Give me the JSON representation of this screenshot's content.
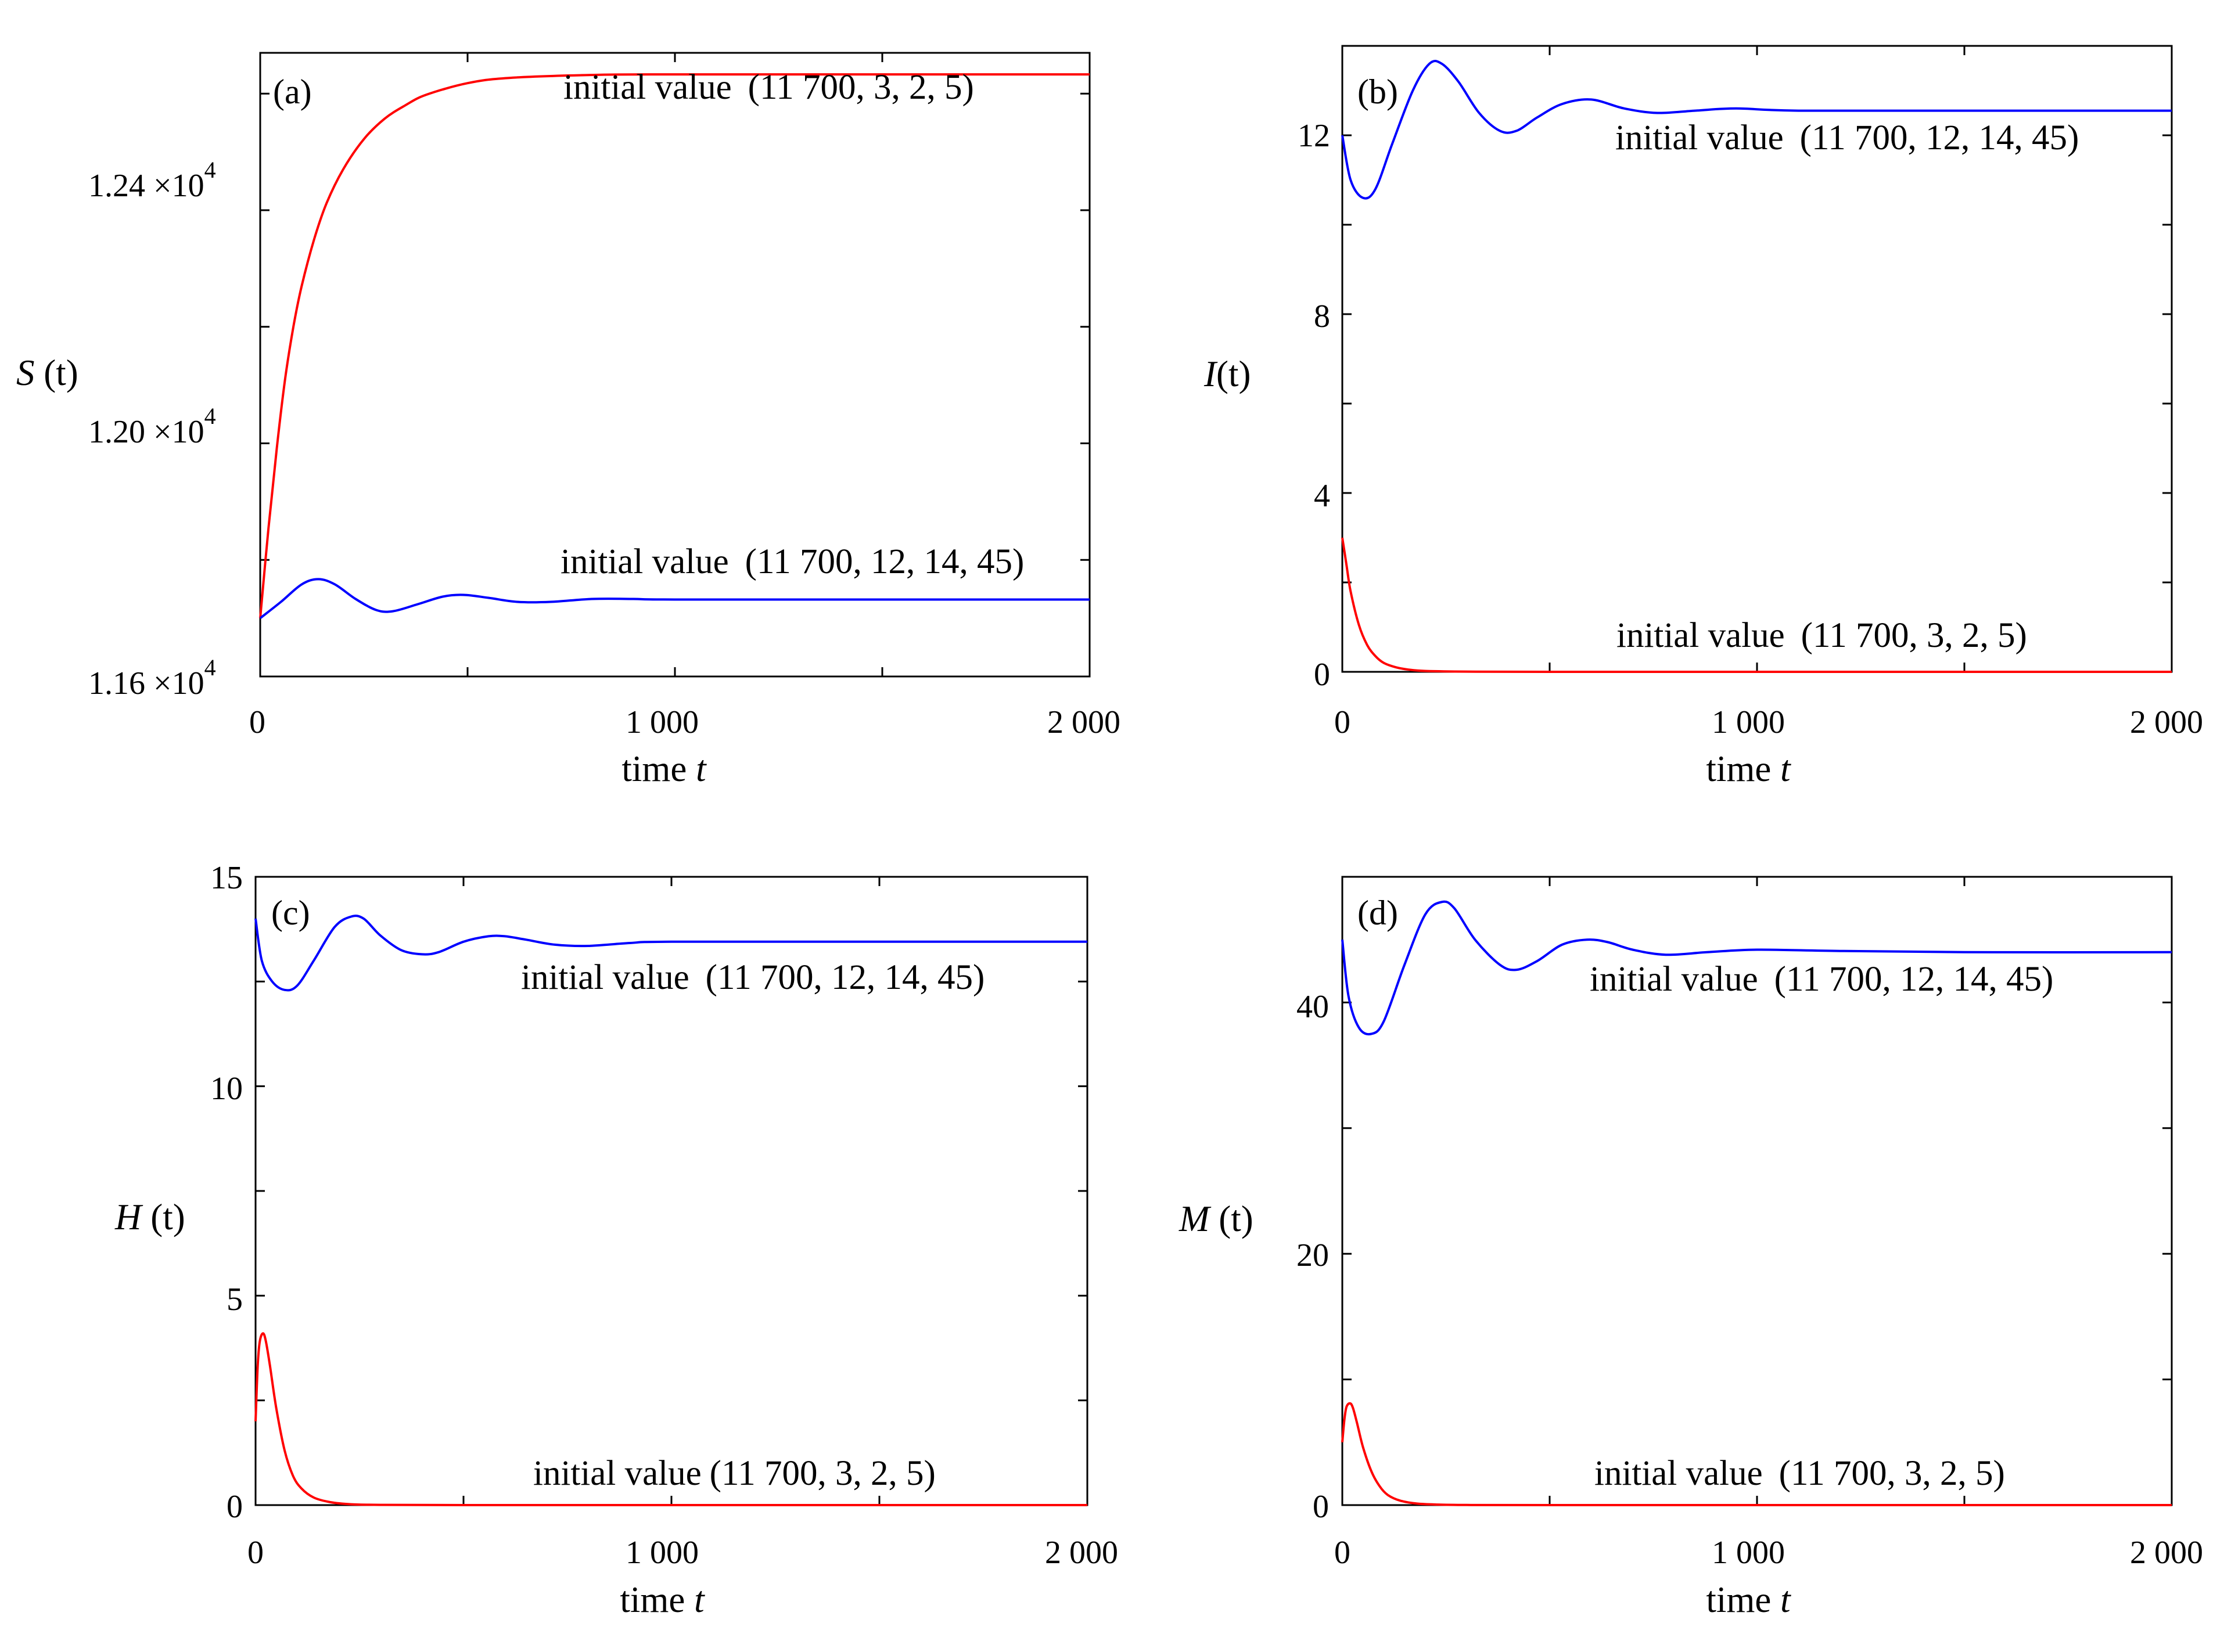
{
  "chart_data": [
    {
      "type": "line",
      "panel_label": "(a)",
      "xlabel": "time t",
      "xlabel_text": "time",
      "xlabel_var": "t",
      "ylabel": "S (t)",
      "ylabel_var": "S",
      "ylabel_arg": "(t)",
      "xlim": [
        0,
        2000
      ],
      "ylim": [
        11600,
        12670
      ],
      "xticks": [
        0,
        1000,
        2000
      ],
      "xtick_labels": [
        "0",
        "1 000",
        "2 000"
      ],
      "yticks": [
        11600,
        12000,
        12400
      ],
      "ytick_labels": [
        {
          "mantissa": "1.16 ×10",
          "exponent": "4"
        },
        {
          "mantissa": "1.20 ×10",
          "exponent": "4"
        },
        {
          "mantissa": "1.24 ×10",
          "exponent": "4"
        }
      ],
      "series": [
        {
          "name": "initial value (11 700, 3, 2, 5)",
          "color": "#ff0000",
          "x": [
            0,
            20,
            40,
            60,
            80,
            100,
            130,
            160,
            200,
            250,
            300,
            350,
            400,
            500,
            600,
            800,
            1000,
            1500,
            2000
          ],
          "values": [
            11700,
            11855,
            11992,
            12110,
            12200,
            12270,
            12350,
            12412,
            12470,
            12522,
            12557,
            12580,
            12598,
            12618,
            12627,
            12632,
            12633,
            12633,
            12633
          ]
        },
        {
          "name": "initial value (11 700, 12, 14, 45)",
          "color": "#0000ff",
          "x": [
            0,
            50,
            100,
            140,
            180,
            230,
            280,
            320,
            380,
            440,
            490,
            550,
            620,
            700,
            800,
            900,
            1000,
            1500,
            2000
          ],
          "values": [
            11700,
            11728,
            11758,
            11767,
            11758,
            11733,
            11714,
            11712,
            11724,
            11737,
            11740,
            11735,
            11728,
            11728,
            11733,
            11733,
            11732,
            11732,
            11732
          ]
        }
      ],
      "annotations": [
        {
          "text": "initial value",
          "values": "(11 700, 3, 2, 5)",
          "series": 0
        },
        {
          "text": "initial value",
          "values": "(11 700, 12, 14, 45)",
          "series": 1
        }
      ]
    },
    {
      "type": "line",
      "panel_label": "(b)",
      "xlabel": "time t",
      "xlabel_text": "time",
      "xlabel_var": "t",
      "ylabel": "I (t)",
      "ylabel_var": "I",
      "ylabel_arg": "(t)",
      "xlim": [
        0,
        2000
      ],
      "ylim": [
        0,
        14
      ],
      "xticks": [
        0,
        1000,
        2000
      ],
      "xtick_labels": [
        "0",
        "1 000",
        "2 000"
      ],
      "yticks": [
        0,
        4,
        8,
        12
      ],
      "ytick_labels": [
        "0",
        "4",
        "8",
        "12"
      ],
      "series": [
        {
          "name": "initial value (11 700, 12, 14, 45)",
          "color": "#0000ff",
          "x": [
            0,
            20,
            50,
            80,
            120,
            170,
            210,
            240,
            280,
            330,
            380,
            420,
            470,
            530,
            600,
            680,
            760,
            850,
            950,
            1100,
            1500,
            2000
          ],
          "values": [
            12,
            11.0,
            10.6,
            10.8,
            11.8,
            13.0,
            13.6,
            13.6,
            13.2,
            12.5,
            12.1,
            12.1,
            12.4,
            12.7,
            12.8,
            12.6,
            12.5,
            12.55,
            12.6,
            12.55,
            12.55,
            12.55
          ]
        },
        {
          "name": "initial value (11 700, 3, 2, 5)",
          "color": "#ff0000",
          "x": [
            0,
            10,
            20,
            40,
            60,
            80,
            100,
            130,
            160,
            200,
            300,
            500,
            1000,
            2000
          ],
          "values": [
            3,
            2.4,
            1.8,
            1.05,
            0.6,
            0.35,
            0.2,
            0.1,
            0.05,
            0.02,
            0.005,
            0,
            0,
            0
          ]
        }
      ],
      "annotations": [
        {
          "text": "initial value",
          "values": "(11 700, 12, 14, 45)",
          "series": 0
        },
        {
          "text": "initial value",
          "values": "(11 700, 3, 2, 5)",
          "series": 1
        }
      ]
    },
    {
      "type": "line",
      "panel_label": "(c)",
      "xlabel": "time t",
      "xlabel_text": "time",
      "xlabel_var": "t",
      "ylabel": "H (t)",
      "ylabel_var": "H",
      "ylabel_arg": "(t)",
      "xlim": [
        0,
        2000
      ],
      "ylim": [
        0,
        15
      ],
      "xticks": [
        0,
        1000,
        2000
      ],
      "xtick_labels": [
        "0",
        "1 000",
        "2 000"
      ],
      "yticks": [
        0,
        5,
        10,
        15
      ],
      "ytick_labels": [
        "0",
        "5",
        "10",
        "15"
      ],
      "series": [
        {
          "name": "initial value (11 700, 12, 14, 45)",
          "color": "#0000ff",
          "x": [
            0,
            15,
            40,
            70,
            100,
            140,
            190,
            230,
            260,
            300,
            350,
            400,
            440,
            500,
            560,
            600,
            650,
            720,
            800,
            900,
            1000,
            1500,
            2000
          ],
          "values": [
            14,
            13.0,
            12.5,
            12.3,
            12.4,
            13.0,
            13.8,
            14.05,
            14.0,
            13.6,
            13.25,
            13.15,
            13.2,
            13.45,
            13.58,
            13.58,
            13.5,
            13.38,
            13.35,
            13.42,
            13.45,
            13.45,
            13.45
          ]
        },
        {
          "name": "initial value (11 700, 3, 2, 5)",
          "color": "#ff0000",
          "x": [
            0,
            5,
            10,
            18,
            25,
            35,
            50,
            70,
            90,
            110,
            140,
            180,
            230,
            300,
            500,
            1000,
            2000
          ],
          "values": [
            2,
            3.3,
            3.9,
            4.1,
            3.9,
            3.3,
            2.3,
            1.3,
            0.7,
            0.4,
            0.18,
            0.07,
            0.02,
            0.005,
            0,
            0,
            0
          ]
        }
      ],
      "annotations": [
        {
          "text": "initial value",
          "values": "(11 700, 12, 14, 45)",
          "series": 0
        },
        {
          "text": "initial value",
          "values": "(11 700, 3, 2, 5)",
          "series": 1
        }
      ]
    },
    {
      "type": "line",
      "panel_label": "(d)",
      "xlabel": "time t",
      "xlabel_text": "time",
      "xlabel_var": "t",
      "ylabel": "M (t)",
      "ylabel_var": "M",
      "ylabel_arg": "(t)",
      "xlim": [
        0,
        2000
      ],
      "ylim": [
        0,
        50
      ],
      "xticks": [
        0,
        1000,
        2000
      ],
      "xtick_labels": [
        "0",
        "1 000",
        "2 000"
      ],
      "yticks": [
        0,
        20,
        40
      ],
      "ytick_labels": [
        "0",
        "20",
        "40"
      ],
      "series": [
        {
          "name": "initial value (11 700, 12, 14, 45)",
          "color": "#0000ff",
          "x": [
            0,
            15,
            40,
            70,
            100,
            150,
            200,
            240,
            270,
            320,
            380,
            420,
            470,
            530,
            590,
            640,
            700,
            780,
            880,
            1000,
            1200,
            1500,
            2000
          ],
          "values": [
            45,
            40.5,
            38.0,
            37.5,
            38.5,
            43.0,
            47.0,
            48.0,
            47.5,
            45.0,
            43.0,
            42.6,
            43.3,
            44.6,
            45.0,
            44.8,
            44.2,
            43.8,
            44.0,
            44.2,
            44.1,
            44.0,
            44.0
          ]
        },
        {
          "name": "initial value (11 700, 3, 2, 5)",
          "color": "#ff0000",
          "x": [
            0,
            5,
            10,
            18,
            25,
            35,
            50,
            70,
            90,
            110,
            140,
            180,
            230,
            300,
            500,
            1000,
            2000
          ],
          "values": [
            5,
            6.8,
            7.8,
            8.1,
            7.8,
            6.6,
            4.6,
            2.7,
            1.5,
            0.8,
            0.35,
            0.12,
            0.04,
            0.01,
            0,
            0,
            0
          ]
        }
      ],
      "annotations": [
        {
          "text": "initial value",
          "values": "(11 700, 12, 14, 45)",
          "series": 0
        },
        {
          "text": "initial value",
          "values": "(11 700, 3, 2, 5)",
          "series": 1
        }
      ]
    }
  ]
}
